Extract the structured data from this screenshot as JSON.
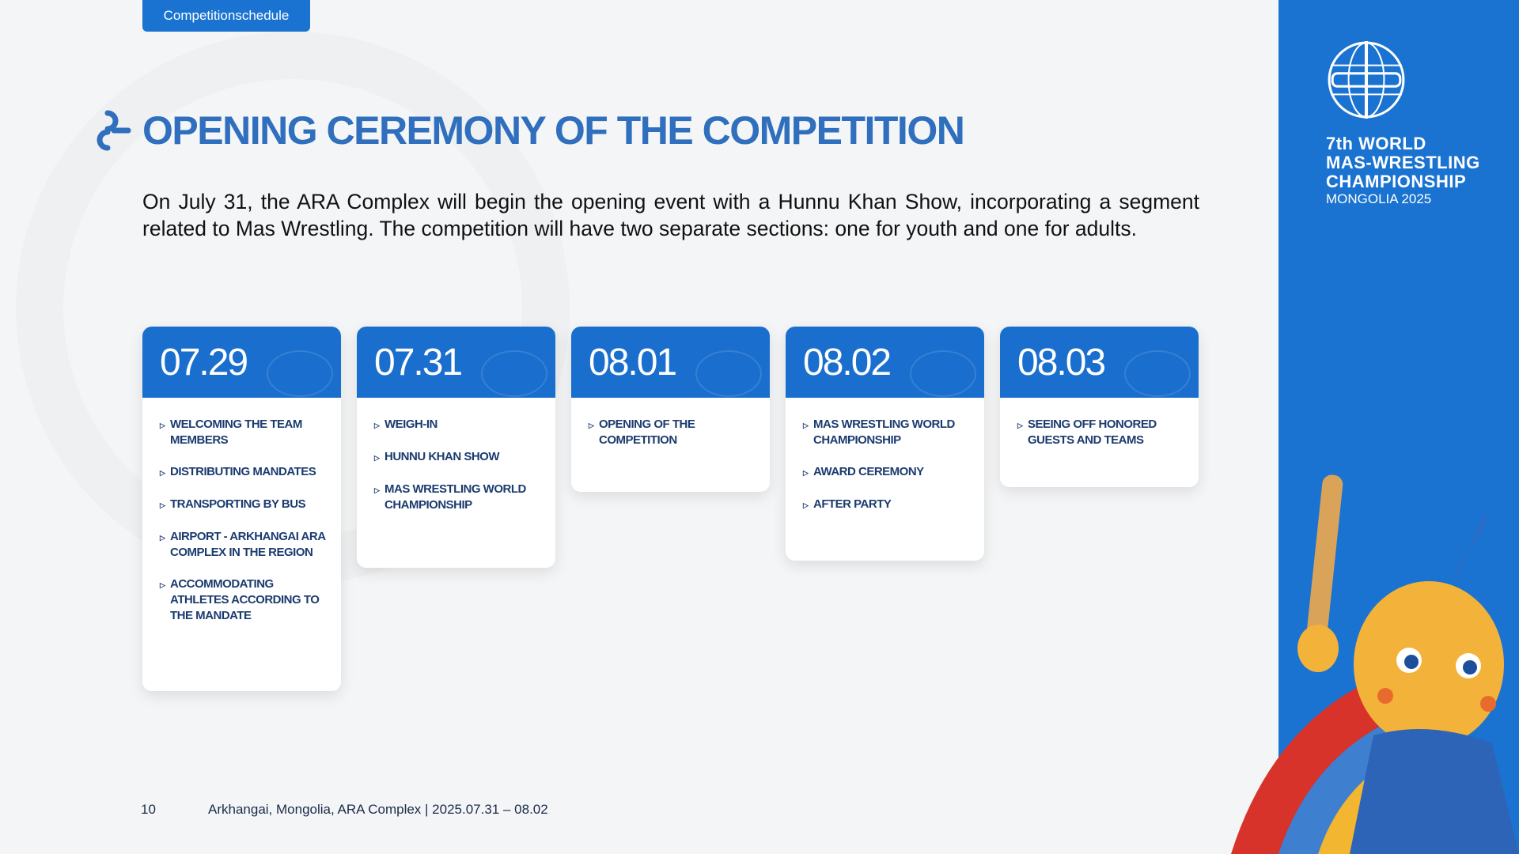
{
  "tab": "Competitionschedule",
  "title": "OPENING CEREMONY OF THE COMPETITION",
  "paragraph": "On July 31, the ARA Complex will begin the opening event with a Hunnu Khan Show, incorporating a segment related to Mas Wrestling. The competition will have two separate sections: one for youth and one for adults.",
  "cards": [
    {
      "date": "07.29",
      "items": [
        "WELCOMING THE TEAM MEMBERS",
        "DISTRIBUTING MANDATES",
        "TRANSPORTING BY BUS",
        "AIRPORT - ARKHANGAI ARA COMPLEX IN THE REGION",
        "ACCOMMODATING ATHLETES ACCORDING TO THE MANDATE"
      ]
    },
    {
      "date": "07.31",
      "items": [
        "WEIGH-IN",
        "HUNNU KHAN SHOW",
        "MAS WRESTLING WORLD CHAMPIONSHIP"
      ]
    },
    {
      "date": "08.01",
      "items": [
        "OPENING OF THE COMPETITION"
      ]
    },
    {
      "date": "08.02",
      "items": [
        "MAS WRESTLING WORLD CHAMPIONSHIP",
        "AWARD CEREMONY",
        "AFTER PARTY"
      ]
    },
    {
      "date": "08.03",
      "items": [
        "SEEING OFF HONORED GUESTS AND TEAMS"
      ]
    }
  ],
  "brand": {
    "line1": "7th WORLD",
    "line2": "MAS-WRESTLING",
    "line3": "CHAMPIONSHIP",
    "line4": "MONGOLIA 2025"
  },
  "footer": {
    "page": "10",
    "text": "Arkhangai, Mongolia, ARA Complex | 2025.07.31 – 08.02"
  },
  "colors": {
    "accent": "#1a73d1",
    "title": "#2f6fbd",
    "item_text": "#1b3b6f"
  }
}
